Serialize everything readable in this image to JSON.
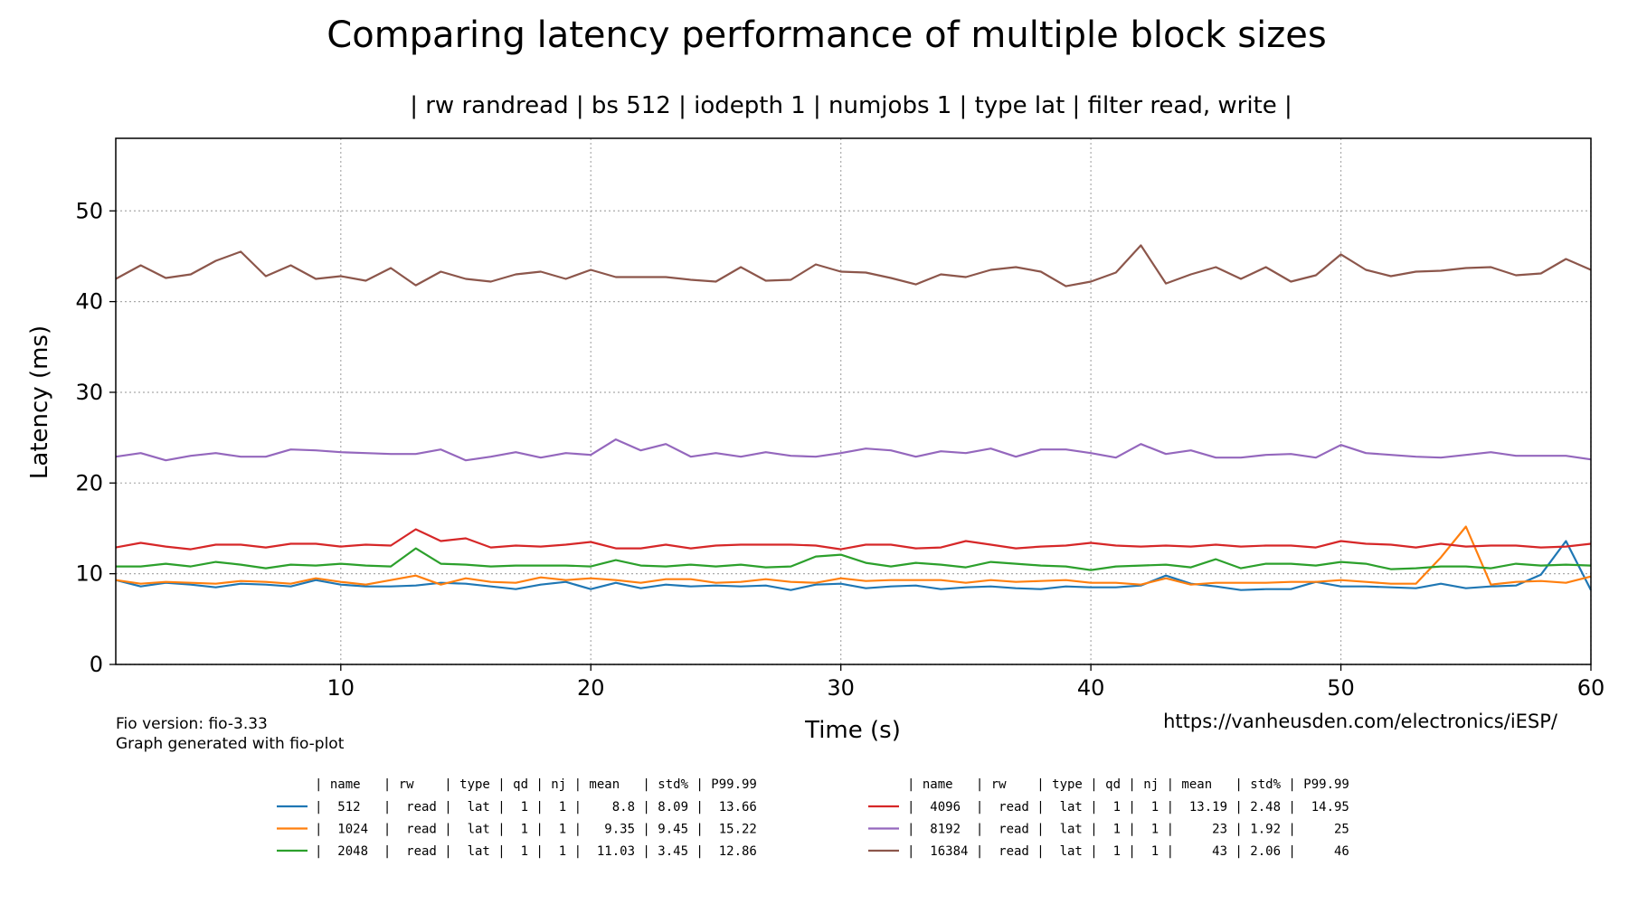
{
  "chart_data": {
    "type": "line",
    "title": "Comparing latency performance of multiple block sizes",
    "subtitle": "| rw randread | bs 512 | iodepth 1 | numjobs 1 | type lat | filter read, write |",
    "xlabel": "Time (s)",
    "ylabel": "Latency (ms)",
    "xlim": [
      1,
      60
    ],
    "ylim": [
      0,
      58
    ],
    "xticks": [
      10,
      20,
      30,
      40,
      50,
      60
    ],
    "yticks": [
      0,
      10,
      20,
      30,
      40,
      50
    ],
    "grid": true,
    "x": [
      1,
      2,
      3,
      4,
      5,
      6,
      7,
      8,
      9,
      10,
      11,
      12,
      13,
      14,
      15,
      16,
      17,
      18,
      19,
      20,
      21,
      22,
      23,
      24,
      25,
      26,
      27,
      28,
      29,
      30,
      31,
      32,
      33,
      34,
      35,
      36,
      37,
      38,
      39,
      40,
      41,
      42,
      43,
      44,
      45,
      46,
      47,
      48,
      49,
      50,
      51,
      52,
      53,
      54,
      55,
      56,
      57,
      58,
      59,
      60
    ],
    "series": [
      {
        "name": "512",
        "color": "#1f77b4",
        "values": [
          9.3,
          8.6,
          9.0,
          8.8,
          8.5,
          8.9,
          8.8,
          8.6,
          9.3,
          8.8,
          8.6,
          8.6,
          8.7,
          9.0,
          8.9,
          8.6,
          8.3,
          8.8,
          9.1,
          8.3,
          9.0,
          8.4,
          8.8,
          8.6,
          8.7,
          8.6,
          8.7,
          8.2,
          8.8,
          8.9,
          8.4,
          8.6,
          8.7,
          8.3,
          8.5,
          8.6,
          8.4,
          8.3,
          8.6,
          8.5,
          8.5,
          8.7,
          9.8,
          8.9,
          8.6,
          8.2,
          8.3,
          8.3,
          9.1,
          8.6,
          8.6,
          8.5,
          8.4,
          8.9,
          8.4,
          8.6,
          8.7,
          9.9,
          13.6,
          8.2
        ]
      },
      {
        "name": "1024",
        "color": "#ff7f0e",
        "values": [
          9.3,
          8.9,
          9.1,
          9.0,
          8.9,
          9.2,
          9.1,
          8.9,
          9.5,
          9.1,
          8.8,
          9.3,
          9.8,
          8.8,
          9.5,
          9.1,
          9.0,
          9.6,
          9.3,
          9.5,
          9.3,
          9.0,
          9.4,
          9.4,
          9.0,
          9.1,
          9.4,
          9.1,
          9.0,
          9.5,
          9.2,
          9.3,
          9.3,
          9.3,
          9.0,
          9.3,
          9.1,
          9.2,
          9.3,
          9.0,
          9.0,
          8.8,
          9.5,
          8.8,
          9.0,
          9.0,
          9.0,
          9.1,
          9.1,
          9.3,
          9.1,
          8.9,
          8.9,
          11.8,
          15.2,
          8.8,
          9.1,
          9.2,
          9.0,
          9.7
        ]
      },
      {
        "name": "2048",
        "color": "#2ca02c",
        "values": [
          10.8,
          10.8,
          11.1,
          10.8,
          11.3,
          11.0,
          10.6,
          11.0,
          10.9,
          11.1,
          10.9,
          10.8,
          12.8,
          11.1,
          11.0,
          10.8,
          10.9,
          10.9,
          10.9,
          10.8,
          11.5,
          10.9,
          10.8,
          11.0,
          10.8,
          11.0,
          10.7,
          10.8,
          11.9,
          12.1,
          11.2,
          10.8,
          11.2,
          11.0,
          10.7,
          11.3,
          11.1,
          10.9,
          10.8,
          10.4,
          10.8,
          10.9,
          11.0,
          10.7,
          11.6,
          10.6,
          11.1,
          11.1,
          10.9,
          11.3,
          11.1,
          10.5,
          10.6,
          10.8,
          10.8,
          10.6,
          11.1,
          10.9,
          11.0,
          10.9
        ]
      },
      {
        "name": "4096",
        "color": "#d62728",
        "values": [
          12.9,
          13.4,
          13.0,
          12.7,
          13.2,
          13.2,
          12.9,
          13.3,
          13.3,
          13.0,
          13.2,
          13.1,
          14.9,
          13.6,
          13.9,
          12.9,
          13.1,
          13.0,
          13.2,
          13.5,
          12.8,
          12.8,
          13.2,
          12.8,
          13.1,
          13.2,
          13.2,
          13.2,
          13.1,
          12.7,
          13.2,
          13.2,
          12.8,
          12.9,
          13.6,
          13.2,
          12.8,
          13.0,
          13.1,
          13.4,
          13.1,
          13.0,
          13.1,
          13.0,
          13.2,
          13.0,
          13.1,
          13.1,
          12.9,
          13.6,
          13.3,
          13.2,
          12.9,
          13.3,
          13.0,
          13.1,
          13.1,
          12.9,
          13.0,
          13.3
        ]
      },
      {
        "name": "8192",
        "color": "#9467bd",
        "values": [
          22.9,
          23.3,
          22.5,
          23.0,
          23.3,
          22.9,
          22.9,
          23.7,
          23.6,
          23.4,
          23.3,
          23.2,
          23.2,
          23.7,
          22.5,
          22.9,
          23.4,
          22.8,
          23.3,
          23.1,
          24.8,
          23.6,
          24.3,
          22.9,
          23.3,
          22.9,
          23.4,
          23.0,
          22.9,
          23.3,
          23.8,
          23.6,
          22.9,
          23.5,
          23.3,
          23.8,
          22.9,
          23.7,
          23.7,
          23.3,
          22.8,
          24.3,
          23.2,
          23.6,
          22.8,
          22.8,
          23.1,
          23.2,
          22.8,
          24.2,
          23.3,
          23.1,
          22.9,
          22.8,
          23.1,
          23.4,
          23.0,
          23.0,
          23.0,
          22.6
        ]
      },
      {
        "name": "16384",
        "color": "#8c564b",
        "values": [
          42.5,
          44.0,
          42.6,
          43.0,
          44.5,
          45.5,
          42.8,
          44.0,
          42.5,
          42.8,
          42.3,
          43.7,
          41.8,
          43.3,
          42.5,
          42.2,
          43.0,
          43.3,
          42.5,
          43.5,
          42.7,
          42.7,
          42.7,
          42.4,
          42.2,
          43.8,
          42.3,
          42.4,
          44.1,
          43.3,
          43.2,
          42.6,
          41.9,
          43.0,
          42.7,
          43.5,
          43.8,
          43.3,
          41.7,
          42.2,
          43.2,
          46.2,
          42.0,
          43.0,
          43.8,
          42.5,
          43.8,
          42.2,
          42.9,
          45.2,
          43.5,
          42.8,
          43.3,
          43.4,
          43.7,
          43.8,
          42.9,
          43.1,
          44.7,
          43.5
        ]
      }
    ],
    "legend": {
      "placement": "bottom",
      "header": "| name   | rw    | type | qd | nj | mean   | std% | P99.99",
      "rows": [
        "|  512   |  read |  lat |  1 |  1 |    8.8 | 8.09 |  13.66",
        "|  1024  |  read |  lat |  1 |  1 |   9.35 | 9.45 |  15.22",
        "|  2048  |  read |  lat |  1 |  1 |  11.03 | 3.45 |  12.86",
        "|  4096  |  read |  lat |  1 |  1 |  13.19 | 2.48 |  14.95",
        "|  8192  |  read |  lat |  1 |  1 |     23 | 1.92 |     25",
        "|  16384 |  read |  lat |  1 |  1 |     43 | 2.06 |     46"
      ]
    },
    "footer_left_1": "Fio version: fio-3.33",
    "footer_left_2": "Graph generated with fio-plot",
    "footer_right": "https://vanheusden.com/electronics/iESP/"
  }
}
